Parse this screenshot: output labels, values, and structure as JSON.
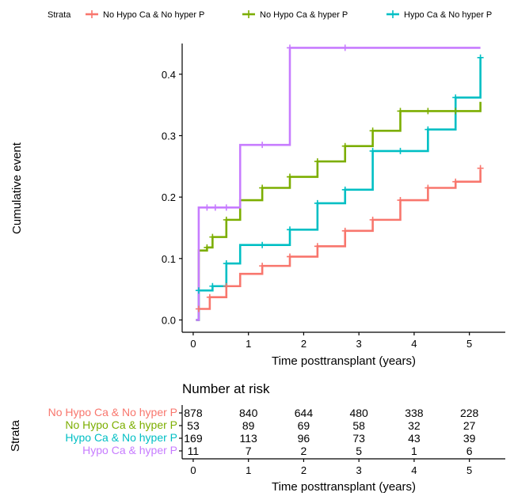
{
  "chart_data": [
    {
      "type": "line",
      "xlabel": "Time posttransplant (years)",
      "ylabel": "Cumulative event",
      "xlim": [
        -0.2,
        5.65
      ],
      "ylim": [
        -0.02,
        0.45
      ],
      "x_ticks": [
        0,
        1,
        2,
        3,
        4,
        5
      ],
      "y_ticks": [
        0.0,
        0.1,
        0.2,
        0.3,
        0.4
      ],
      "legend_title": "Strata",
      "legend_position": "top",
      "series": [
        {
          "name": "No Hypo Ca & No hyper P",
          "color": "#F8766D",
          "steps": [
            [
              0.05,
              0
            ],
            [
              0.1,
              0.018
            ],
            [
              0.3,
              0.037
            ],
            [
              0.6,
              0.055
            ],
            [
              0.85,
              0.075
            ],
            [
              1.25,
              0.088
            ],
            [
              1.75,
              0.103
            ],
            [
              2.25,
              0.12
            ],
            [
              2.75,
              0.145
            ],
            [
              3.25,
              0.163
            ],
            [
              3.75,
              0.195
            ],
            [
              4.25,
              0.215
            ],
            [
              4.75,
              0.225
            ],
            [
              5.2,
              0.245
            ]
          ],
          "censor": [
            [
              0.1,
              0.018
            ],
            [
              0.3,
              0.037
            ],
            [
              0.6,
              0.055
            ],
            [
              1.25,
              0.088
            ],
            [
              1.75,
              0.103
            ],
            [
              2.25,
              0.12
            ],
            [
              2.75,
              0.145
            ],
            [
              3.25,
              0.163
            ],
            [
              3.75,
              0.195
            ],
            [
              4.25,
              0.215
            ],
            [
              4.75,
              0.225
            ],
            [
              5.2,
              0.247
            ]
          ]
        },
        {
          "name": "No Hypo Ca & hyper P",
          "color": "#7CAE00",
          "steps": [
            [
              0.05,
              0
            ],
            [
              0.1,
              0.113
            ],
            [
              0.25,
              0.118
            ],
            [
              0.35,
              0.135
            ],
            [
              0.6,
              0.163
            ],
            [
              0.85,
              0.195
            ],
            [
              1.25,
              0.215
            ],
            [
              1.75,
              0.233
            ],
            [
              2.25,
              0.258
            ],
            [
              2.75,
              0.283
            ],
            [
              3.25,
              0.308
            ],
            [
              3.75,
              0.34
            ],
            [
              5.2,
              0.355
            ]
          ],
          "censor": [
            [
              0.25,
              0.118
            ],
            [
              0.35,
              0.135
            ],
            [
              0.6,
              0.163
            ],
            [
              1.25,
              0.215
            ],
            [
              1.75,
              0.233
            ],
            [
              2.25,
              0.258
            ],
            [
              2.75,
              0.283
            ],
            [
              3.25,
              0.308
            ],
            [
              3.75,
              0.34
            ],
            [
              4.25,
              0.34
            ],
            [
              4.75,
              0.34
            ]
          ]
        },
        {
          "name": "Hypo Ca & No hyper P",
          "color": "#00BFC4",
          "steps": [
            [
              0.05,
              0
            ],
            [
              0.1,
              0.048
            ],
            [
              0.35,
              0.055
            ],
            [
              0.6,
              0.092
            ],
            [
              0.85,
              0.122
            ],
            [
              1.75,
              0.147
            ],
            [
              2.25,
              0.19
            ],
            [
              2.75,
              0.212
            ],
            [
              3.25,
              0.275
            ],
            [
              4.25,
              0.31
            ],
            [
              4.75,
              0.362
            ],
            [
              5.2,
              0.427
            ]
          ],
          "censor": [
            [
              0.1,
              0.048
            ],
            [
              0.35,
              0.055
            ],
            [
              0.6,
              0.092
            ],
            [
              1.25,
              0.122
            ],
            [
              1.75,
              0.147
            ],
            [
              2.25,
              0.19
            ],
            [
              2.75,
              0.212
            ],
            [
              3.25,
              0.275
            ],
            [
              3.75,
              0.275
            ],
            [
              4.25,
              0.31
            ],
            [
              4.75,
              0.362
            ],
            [
              5.2,
              0.427
            ]
          ]
        },
        {
          "name": "Hypo Ca & hyper P",
          "color": "#C77CFF",
          "steps": [
            [
              0.05,
              0
            ],
            [
              0.1,
              0.183
            ],
            [
              0.85,
              0.285
            ],
            [
              1.75,
              0.443
            ],
            [
              5.2,
              0.443
            ]
          ],
          "censor": [
            [
              0.25,
              0.183
            ],
            [
              0.4,
              0.183
            ],
            [
              0.6,
              0.183
            ],
            [
              1.25,
              0.285
            ],
            [
              1.75,
              0.443
            ],
            [
              2.75,
              0.443
            ]
          ]
        }
      ]
    },
    {
      "type": "table",
      "title": "Number at risk",
      "ylabel": "Strata",
      "xlabel": "Time posttransplant (years)",
      "x_ticks": [
        0,
        1,
        2,
        3,
        4,
        5
      ],
      "rows": [
        {
          "name": "No Hypo Ca & No hyper P",
          "color": "#F8766D",
          "values": [
            878,
            840,
            644,
            480,
            338,
            228
          ]
        },
        {
          "name": "No Hypo Ca & hyper P",
          "color": "#7CAE00",
          "values": [
            53,
            89,
            69,
            58,
            32,
            27
          ]
        },
        {
          "name": "Hypo Ca & No hyper P",
          "color": "#00BFC4",
          "values": [
            169,
            113,
            96,
            73,
            43,
            39
          ]
        },
        {
          "name": "Hypo Ca & hyper P",
          "color": "#C77CFF",
          "values": [
            11,
            7,
            2,
            5,
            1,
            6
          ]
        }
      ]
    }
  ]
}
